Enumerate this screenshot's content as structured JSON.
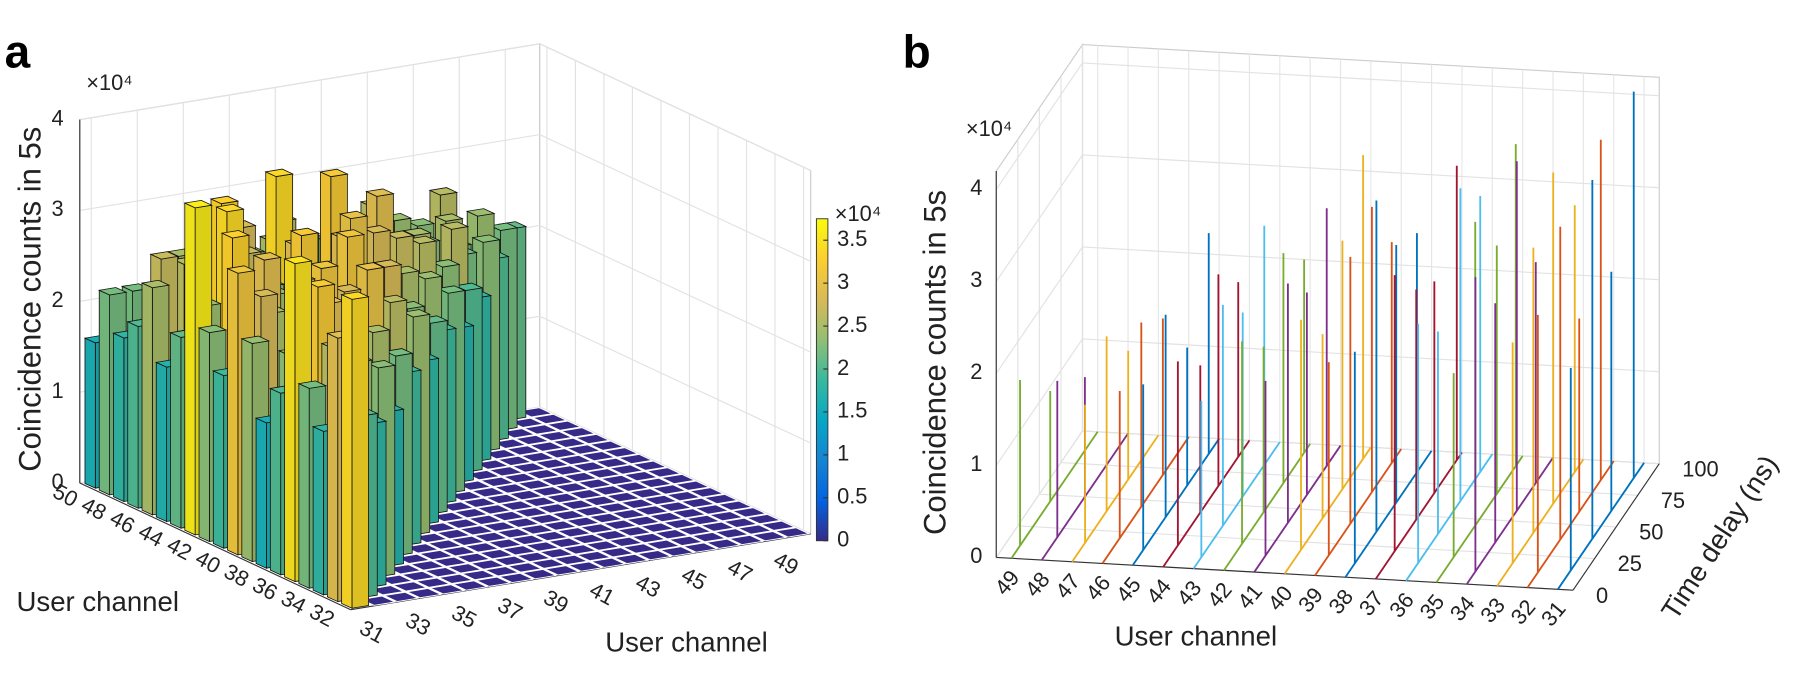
{
  "chart_data": [
    {
      "type": "bar3",
      "panel_label": "a",
      "zlabel": "Coincidence counts in 5s",
      "xlabel": "User channel",
      "ylabel": "User channel",
      "z_multiplier": "×10⁴",
      "x": [
        31,
        32,
        33,
        34,
        35,
        36,
        37,
        38,
        39,
        40,
        41,
        42,
        43,
        44,
        45,
        46,
        47,
        48,
        49
      ],
      "y": [
        32,
        33,
        34,
        35,
        36,
        37,
        38,
        39,
        40,
        41,
        42,
        43,
        44,
        45,
        46,
        47,
        48,
        49,
        50
      ],
      "values": [
        [
          3.4,
          2.9,
          1.8,
          2.2,
          3.5,
          2.0,
          1.6,
          2.4,
          3.1,
          1.9,
          2.3,
          3.6,
          2.1,
          1.7,
          2.5,
          2.0,
          1.8,
          2.2,
          1.6
        ],
        [
          2.0,
          1.7,
          2.6,
          3.2,
          1.9,
          2.3,
          1.5,
          2.8,
          2.1,
          3.3,
          1.8,
          2.4,
          2.0,
          1.6,
          2.7,
          1.9,
          2.2,
          1.7
        ],
        [
          1.8,
          2.4,
          1.6,
          2.9,
          2.2,
          3.0,
          1.7,
          2.5,
          2.0,
          1.9,
          3.4,
          2.1,
          1.8,
          2.6,
          2.3,
          1.6,
          2.0
        ],
        [
          2.3,
          1.9,
          2.7,
          1.6,
          3.1,
          2.0,
          2.4,
          1.8,
          2.9,
          2.2,
          1.7,
          3.3,
          2.1,
          1.9,
          2.5,
          1.8
        ],
        [
          1.7,
          2.5,
          2.1,
          2.8,
          1.9,
          2.3,
          3.2,
          1.6,
          2.4,
          2.0,
          2.7,
          1.8,
          3.0,
          2.2,
          1.9
        ],
        [
          2.2,
          1.8,
          3.0,
          2.0,
          2.6,
          1.7,
          2.4,
          2.9,
          1.9,
          2.3,
          1.6,
          2.8,
          2.1,
          2.5
        ],
        [
          1.9,
          2.6,
          1.7,
          2.3,
          3.1,
          2.0,
          1.8,
          2.5,
          2.2,
          3.4,
          1.9,
          2.4,
          2.0
        ],
        [
          2.4,
          2.0,
          2.8,
          1.7,
          2.2,
          2.9,
          1.6,
          2.3,
          2.7,
          1.9,
          2.5,
          1.8
        ],
        [
          1.8,
          2.3,
          1.9,
          2.6,
          2.1,
          3.0,
          2.4,
          1.7,
          2.2,
          2.0,
          2.6
        ],
        [
          2.1,
          1.7,
          2.5,
          2.0,
          2.8,
          1.9,
          2.3,
          3.2,
          1.8,
          2.4
        ],
        [
          1.9,
          2.4,
          1.8,
          2.7,
          2.2,
          1.6,
          2.5,
          2.0,
          2.3
        ],
        [
          2.2,
          1.8,
          2.6,
          2.0,
          2.4,
          2.9,
          1.7,
          2.1
        ],
        [
          1.7,
          2.3,
          2.0,
          2.5,
          1.9,
          2.2,
          2.6
        ],
        [
          2.0,
          2.6,
          1.8,
          2.3,
          2.1,
          2.4
        ],
        [
          1.8,
          2.2,
          2.5,
          1.9,
          2.3
        ],
        [
          2.3,
          1.9,
          2.1,
          2.6
        ],
        [
          2.0,
          2.4,
          1.8
        ],
        [
          2.2,
          1.9
        ],
        [
          2.1
        ]
      ],
      "xlim": [
        30.5,
        50.5
      ],
      "ylim": [
        31.5,
        50.5
      ],
      "zlim": [
        0,
        4
      ],
      "xticks": [
        31,
        33,
        35,
        37,
        39,
        41,
        43,
        45,
        47,
        49
      ],
      "yticks": [
        32,
        34,
        36,
        38,
        40,
        42,
        44,
        46,
        48,
        50
      ],
      "zticks": [
        0,
        1,
        2,
        3,
        4
      ],
      "colormap": "parula",
      "colorbar": {
        "clim": [
          0,
          3.75
        ],
        "ticks": [
          0,
          0.5,
          1,
          1.5,
          2,
          2.5,
          3,
          3.5
        ],
        "multiplier": "×10⁴"
      },
      "grid": true
    },
    {
      "type": "stem3",
      "panel_label": "b",
      "zlabel": "Coincidence counts in 5s",
      "xlabel": "User channel",
      "ylabel": "Time delay (ns)",
      "z_multiplier": "×10⁴",
      "categories": [
        31,
        32,
        33,
        34,
        35,
        36,
        37,
        38,
        39,
        40,
        41,
        42,
        43,
        44,
        45,
        46,
        47,
        48,
        49
      ],
      "series": [
        {
          "color": "#0072bd",
          "x": [
            15,
            40,
            62,
            88
          ],
          "values": [
            2.2,
            3.9,
            2.6,
            4.2
          ]
        },
        {
          "color": "#d95319",
          "x": [
            12,
            38,
            60,
            85
          ],
          "values": [
            2.8,
            3.4,
            2.1,
            3.7
          ]
        },
        {
          "color": "#edb120",
          "x": [
            18,
            42,
            65,
            90
          ],
          "values": [
            2.4,
            3.1,
            3.6,
            2.9
          ]
        },
        {
          "color": "#7e2f8e",
          "x": [
            10,
            33,
            58,
            80
          ],
          "values": [
            3.2,
            2.6,
            3.8,
            2.4
          ]
        },
        {
          "color": "#77ac30",
          "x": [
            20,
            45,
            70,
            92
          ],
          "values": [
            2.0,
            3.3,
            2.7,
            3.5
          ]
        },
        {
          "color": "#4dbeee",
          "x": [
            14,
            37,
            63,
            86
          ],
          "values": [
            2.6,
            2.2,
            3.4,
            3.0
          ]
        },
        {
          "color": "#a2142f",
          "x": [
            22,
            47,
            68,
            94
          ],
          "values": [
            3.0,
            2.5,
            2.3,
            3.2
          ]
        },
        {
          "color": "#0072bd",
          "x": [
            11,
            36,
            59,
            83
          ],
          "values": [
            2.3,
            3.6,
            2.8,
            2.6
          ]
        },
        {
          "color": "#d95319",
          "x": [
            16,
            41,
            66,
            89
          ],
          "values": [
            2.1,
            2.9,
            3.1,
            2.4
          ]
        },
        {
          "color": "#edb120",
          "x": [
            19,
            44,
            67,
            91
          ],
          "values": [
            2.5,
            2.0,
            2.7,
            3.3
          ]
        },
        {
          "color": "#7e2f8e",
          "x": [
            13,
            39,
            61,
            84
          ],
          "values": [
            1.9,
            2.6,
            2.2,
            2.8
          ]
        },
        {
          "color": "#77ac30",
          "x": [
            21,
            46,
            69,
            93
          ],
          "values": [
            2.2,
            1.8,
            2.5,
            2.1
          ]
        },
        {
          "color": "#4dbeee",
          "x": [
            9,
            34,
            57,
            82
          ],
          "values": [
            1.7,
            2.4,
            2.0,
            2.6
          ]
        },
        {
          "color": "#a2142f",
          "x": [
            17,
            43,
            64,
            87
          ],
          "values": [
            2.0,
            1.6,
            2.3,
            1.9
          ]
        },
        {
          "color": "#0072bd",
          "x": [
            12,
            38,
            63,
            88
          ],
          "values": [
            1.8,
            2.2,
            1.5,
            2.4
          ]
        },
        {
          "color": "#d95319",
          "x": [
            20,
            45,
            70
          ],
          "values": [
            1.6,
            2.0,
            1.7
          ]
        },
        {
          "color": "#edb120",
          "x": [
            15,
            40,
            65
          ],
          "values": [
            1.5,
            1.9,
            1.4
          ]
        },
        {
          "color": "#7e2f8e",
          "x": [
            18,
            50
          ],
          "values": [
            1.7,
            1.3
          ]
        },
        {
          "color": "#77ac30",
          "x": [
            10,
            45
          ],
          "values": [
            1.8,
            1.2
          ]
        }
      ],
      "ylim": [
        0,
        100
      ],
      "yticks": [
        0,
        25,
        50,
        75,
        100
      ],
      "zlim": [
        0,
        4.2
      ],
      "zticks": [
        0,
        1,
        2,
        3,
        4
      ],
      "grid": true
    }
  ]
}
